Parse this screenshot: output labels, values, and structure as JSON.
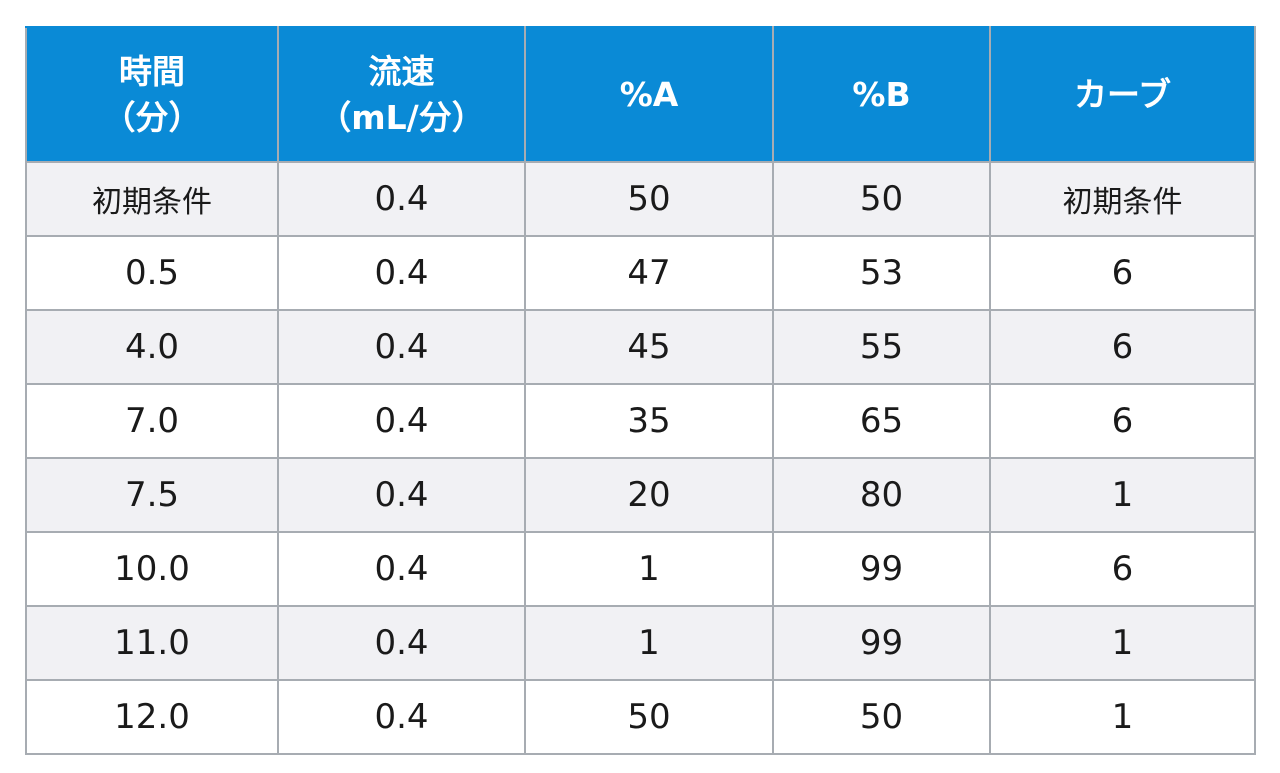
{
  "table": {
    "header": {
      "time": {
        "line1": "時間",
        "line2": "（分）"
      },
      "flow": {
        "line1": "流速",
        "line2": "（mL/分）"
      },
      "pct_a": "%A",
      "pct_b": "%B",
      "curve": "カーブ"
    },
    "rows": [
      {
        "time": "初期条件",
        "flow": "0.4",
        "pct_a": "50",
        "pct_b": "50",
        "curve": "初期条件"
      },
      {
        "time": "0.5",
        "flow": "0.4",
        "pct_a": "47",
        "pct_b": "53",
        "curve": "6"
      },
      {
        "time": "4.0",
        "flow": "0.4",
        "pct_a": "45",
        "pct_b": "55",
        "curve": "6"
      },
      {
        "time": "7.0",
        "flow": "0.4",
        "pct_a": "35",
        "pct_b": "65",
        "curve": "6"
      },
      {
        "time": "7.5",
        "flow": "0.4",
        "pct_a": "20",
        "pct_b": "80",
        "curve": "1"
      },
      {
        "time": "10.0",
        "flow": "0.4",
        "pct_a": "1",
        "pct_b": "99",
        "curve": "6"
      },
      {
        "time": "11.0",
        "flow": "0.4",
        "pct_a": "1",
        "pct_b": "99",
        "curve": "1"
      },
      {
        "time": "12.0",
        "flow": "0.4",
        "pct_a": "50",
        "pct_b": "50",
        "curve": "1"
      }
    ]
  },
  "colors": {
    "header_background": "#0a8ad6",
    "header_text": "#ffffff",
    "stripe_row": "#f1f1f4",
    "plain_row": "#ffffff",
    "grid_line": "#a7acb2"
  }
}
